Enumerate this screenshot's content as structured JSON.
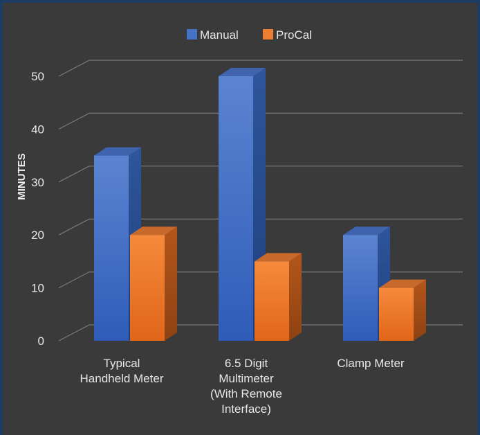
{
  "chart_data": {
    "type": "bar",
    "style": "3d-clustered-column",
    "categories": [
      [
        "Typical",
        "Handheld Meter"
      ],
      [
        "6.5 Digit",
        "Multimeter",
        "(With Remote",
        "Interface)"
      ],
      [
        "Clamp Meter"
      ]
    ],
    "series": [
      {
        "name": "Manual",
        "values": [
          35,
          50,
          20
        ],
        "color": "#4472c4"
      },
      {
        "name": "ProCal",
        "values": [
          20,
          15,
          10
        ],
        "color": "#ed7d31"
      }
    ],
    "title": "",
    "xlabel": "",
    "ylabel": "MINUTES",
    "ylim": [
      0,
      50
    ],
    "yticks": [
      0,
      10,
      20,
      30,
      40,
      50
    ],
    "grid": true,
    "legend_position": "top"
  }
}
